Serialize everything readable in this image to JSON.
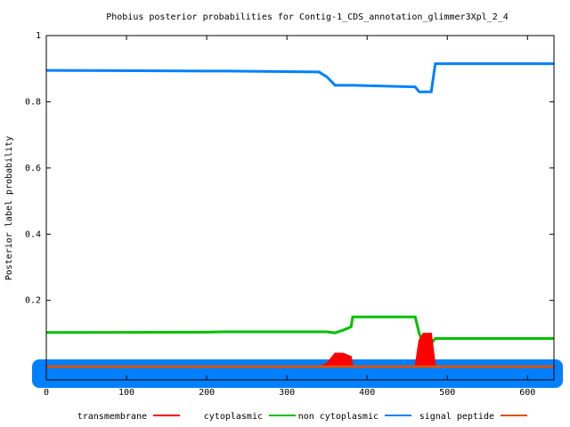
{
  "chart_data": {
    "type": "line",
    "title": "Phobius posterior probabilities for Contig-1_CDS_annotation_glimmer3Xpl_2_4",
    "y_label": "Posterior label probability",
    "x": [
      0,
      200,
      220,
      340,
      350,
      360,
      370,
      380,
      382,
      460,
      465,
      470,
      480,
      485,
      633
    ],
    "series": [
      {
        "name": "transmembrane",
        "color": "#ff0000",
        "area": true,
        "values": [
          0,
          0,
          0,
          0,
          0.01,
          0.04,
          0.04,
          0.03,
          0,
          0,
          0.08,
          0.1,
          0.1,
          0,
          0
        ]
      },
      {
        "name": "cytoplasmic",
        "color": "#00c000",
        "values": [
          0.103,
          0.104,
          0.105,
          0.105,
          0.105,
          0.102,
          0.11,
          0.12,
          0.15,
          0.15,
          0.1,
          0.07,
          0.07,
          0.085,
          0.085
        ]
      },
      {
        "name": "non cytoplasmic",
        "color": "#0080ff",
        "values": [
          0.895,
          0.893,
          0.893,
          0.89,
          0.875,
          0.85,
          0.85,
          0.85,
          0.85,
          0.845,
          0.83,
          0.83,
          0.83,
          0.915,
          0.915
        ]
      },
      {
        "name": "signal peptide",
        "color": "#e05000",
        "values": [
          0,
          0,
          0,
          0,
          0,
          0,
          0,
          0,
          0,
          0,
          0,
          0,
          0,
          0,
          0
        ]
      }
    ],
    "xlim": [
      0,
      633
    ],
    "xticks": [
      0,
      100,
      200,
      300,
      400,
      500,
      600
    ],
    "ylim": [
      -0.04,
      1
    ],
    "yticks": [
      0.2,
      0.4,
      0.6,
      0.8,
      1
    ]
  }
}
